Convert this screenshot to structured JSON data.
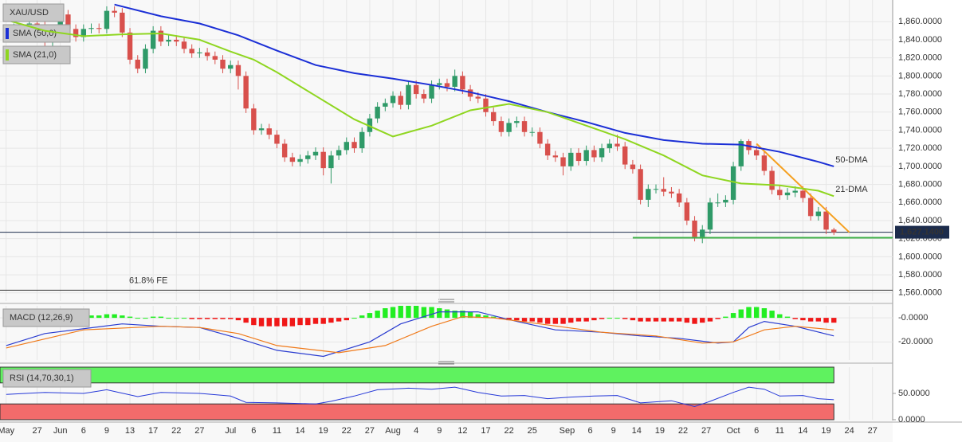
{
  "chart_data": [
    {
      "type": "candlestick",
      "title": "XAU/USD",
      "xlim": [
        -0.8,
        114.6
      ],
      "xticks": [
        {
          "value": 0,
          "label": "May"
        },
        {
          "value": 4,
          "label": "27"
        },
        {
          "value": 7,
          "label": "Jun"
        },
        {
          "value": 10,
          "label": "6"
        },
        {
          "value": 13,
          "label": "9"
        },
        {
          "value": 16,
          "label": "13"
        },
        {
          "value": 19,
          "label": "17"
        },
        {
          "value": 22,
          "label": "22"
        },
        {
          "value": 25,
          "label": "27"
        },
        {
          "value": 29,
          "label": "Jul"
        },
        {
          "value": 32,
          "label": "6"
        },
        {
          "value": 35,
          "label": "11"
        },
        {
          "value": 38,
          "label": "14"
        },
        {
          "value": 41,
          "label": "19"
        },
        {
          "value": 44,
          "label": "22"
        },
        {
          "value": 47,
          "label": "27"
        },
        {
          "value": 50,
          "label": "Aug"
        },
        {
          "value": 53,
          "label": "4"
        },
        {
          "value": 56,
          "label": "9"
        },
        {
          "value": 59,
          "label": "12"
        },
        {
          "value": 62,
          "label": "17"
        },
        {
          "value": 65,
          "label": "22"
        },
        {
          "value": 68,
          "label": "25"
        },
        {
          "value": 72.5,
          "label": "Sep"
        },
        {
          "value": 75.5,
          "label": "6"
        },
        {
          "value": 78.5,
          "label": "9"
        },
        {
          "value": 81.5,
          "label": "14"
        },
        {
          "value": 84.5,
          "label": "19"
        },
        {
          "value": 87.5,
          "label": "22"
        },
        {
          "value": 90.5,
          "label": "27"
        },
        {
          "value": 94,
          "label": "Oct"
        },
        {
          "value": 97,
          "label": "6"
        },
        {
          "value": 100,
          "label": "11"
        },
        {
          "value": 103,
          "label": "14"
        },
        {
          "value": 106,
          "label": "19"
        },
        {
          "value": 109,
          "label": "24"
        },
        {
          "value": 112,
          "label": "27"
        }
      ],
      "ylim": [
        1551,
        1884
      ],
      "yticks": [
        {
          "value": 1560,
          "label": "1,560.0000"
        },
        {
          "value": 1580,
          "label": "1,580.0000"
        },
        {
          "value": 1600,
          "label": "1,600.0000"
        },
        {
          "value": 1620,
          "label": "1,620.0000"
        },
        {
          "value": 1640,
          "label": "1,640.0000"
        },
        {
          "value": 1660,
          "label": "1,660.0000"
        },
        {
          "value": 1680,
          "label": "1,680.0000"
        },
        {
          "value": 1700,
          "label": "1,700.0000"
        },
        {
          "value": 1720,
          "label": "1,720.0000"
        },
        {
          "value": 1740,
          "label": "1,740.0000"
        },
        {
          "value": 1760,
          "label": "1,760.0000"
        },
        {
          "value": 1780,
          "label": "1,780.0000"
        },
        {
          "value": 1800,
          "label": "1,800.0000"
        },
        {
          "value": 1820,
          "label": "1,820.0000"
        },
        {
          "value": 1840,
          "label": "1,840.0000"
        },
        {
          "value": 1860,
          "label": "1,860.0000"
        }
      ],
      "grid": true,
      "up_color": "#2f9a68",
      "down_color": "#d8504c",
      "open": [
        1845,
        1850,
        1853,
        1851,
        1858,
        1855,
        1838,
        1848,
        1868,
        1852,
        1843,
        1852,
        1853,
        1852,
        1872,
        1870,
        1848,
        1818,
        1808,
        1830,
        1850,
        1838,
        1840,
        1838,
        1830,
        1825,
        1826,
        1822,
        1818,
        1808,
        1812,
        1800,
        1764,
        1740,
        1742,
        1735,
        1725,
        1710,
        1705,
        1708,
        1712,
        1716,
        1698,
        1712,
        1718,
        1727,
        1720,
        1738,
        1753,
        1766,
        1770,
        1778,
        1768,
        1790,
        1780,
        1775,
        1790,
        1792,
        1788,
        1800,
        1785,
        1777,
        1775,
        1760,
        1750,
        1738,
        1748,
        1750,
        1738,
        1738,
        1725,
        1712,
        1710,
        1700,
        1715,
        1706,
        1718,
        1710,
        1720,
        1725,
        1722,
        1702,
        1697,
        1663,
        1675,
        1675,
        1672,
        1670,
        1660,
        1640,
        1622,
        1630,
        1660,
        1660,
        1663,
        1700,
        1728,
        1718,
        1712,
        1695,
        1674,
        1668,
        1671,
        1673,
        1665,
        1645,
        1650,
        1630
      ],
      "high": [
        1855,
        1858,
        1858,
        1863,
        1863,
        1860,
        1853,
        1873,
        1873,
        1857,
        1857,
        1858,
        1858,
        1877,
        1877,
        1875,
        1853,
        1823,
        1835,
        1855,
        1855,
        1845,
        1845,
        1843,
        1835,
        1831,
        1831,
        1827,
        1823,
        1817,
        1817,
        1805,
        1769,
        1747,
        1747,
        1740,
        1730,
        1715,
        1713,
        1717,
        1721,
        1721,
        1717,
        1723,
        1732,
        1732,
        1743,
        1758,
        1771,
        1775,
        1783,
        1783,
        1795,
        1795,
        1785,
        1795,
        1797,
        1797,
        1807,
        1805,
        1790,
        1782,
        1780,
        1765,
        1755,
        1753,
        1755,
        1755,
        1743,
        1743,
        1730,
        1717,
        1715,
        1720,
        1720,
        1723,
        1723,
        1725,
        1730,
        1735,
        1727,
        1707,
        1702,
        1680,
        1680,
        1688,
        1677,
        1675,
        1665,
        1645,
        1635,
        1665,
        1670,
        1668,
        1705,
        1730,
        1730,
        1723,
        1717,
        1700,
        1679,
        1676,
        1678,
        1678,
        1670,
        1655,
        1655,
        1632
      ],
      "low": [
        1840,
        1845,
        1846,
        1846,
        1850,
        1833,
        1833,
        1843,
        1847,
        1838,
        1838,
        1847,
        1847,
        1847,
        1865,
        1843,
        1813,
        1803,
        1803,
        1825,
        1833,
        1833,
        1833,
        1825,
        1820,
        1820,
        1817,
        1813,
        1803,
        1803,
        1785,
        1759,
        1735,
        1735,
        1730,
        1720,
        1705,
        1700,
        1700,
        1703,
        1707,
        1690,
        1681,
        1707,
        1713,
        1715,
        1715,
        1733,
        1748,
        1761,
        1765,
        1763,
        1763,
        1775,
        1770,
        1770,
        1785,
        1783,
        1783,
        1780,
        1772,
        1770,
        1755,
        1745,
        1733,
        1733,
        1743,
        1733,
        1733,
        1720,
        1707,
        1705,
        1690,
        1695,
        1701,
        1701,
        1705,
        1705,
        1715,
        1717,
        1697,
        1692,
        1658,
        1655,
        1670,
        1667,
        1665,
        1655,
        1635,
        1617,
        1615,
        1625,
        1655,
        1655,
        1658,
        1695,
        1713,
        1707,
        1690,
        1669,
        1663,
        1663,
        1666,
        1660,
        1640,
        1640,
        1625,
        1624
      ],
      "close": [
        1850,
        1853,
        1851,
        1858,
        1855,
        1838,
        1848,
        1868,
        1852,
        1843,
        1852,
        1853,
        1852,
        1872,
        1870,
        1848,
        1818,
        1808,
        1830,
        1850,
        1838,
        1840,
        1838,
        1830,
        1825,
        1826,
        1822,
        1818,
        1808,
        1812,
        1800,
        1764,
        1740,
        1742,
        1735,
        1725,
        1710,
        1705,
        1708,
        1712,
        1716,
        1698,
        1712,
        1718,
        1727,
        1720,
        1738,
        1753,
        1766,
        1770,
        1778,
        1768,
        1790,
        1780,
        1775,
        1790,
        1792,
        1788,
        1800,
        1785,
        1777,
        1775,
        1760,
        1750,
        1738,
        1748,
        1750,
        1738,
        1738,
        1725,
        1712,
        1710,
        1700,
        1715,
        1706,
        1718,
        1710,
        1720,
        1725,
        1722,
        1702,
        1697,
        1663,
        1675,
        1675,
        1672,
        1670,
        1660,
        1640,
        1622,
        1630,
        1660,
        1660,
        1663,
        1700,
        1728,
        1718,
        1712,
        1695,
        1674,
        1668,
        1671,
        1673,
        1665,
        1645,
        1650,
        1630,
        1627
      ],
      "lines": [
        {
          "name": "SMA (50,0)",
          "label": "50-DMA",
          "color": "#1b2fd6",
          "label_color": "#6a4fc8",
          "x": [
            14,
            20,
            25,
            30,
            35,
            40,
            45,
            50,
            55,
            60,
            65,
            70,
            75,
            80,
            85,
            90,
            95,
            100,
            105,
            107
          ],
          "values": [
            1879,
            1866,
            1858,
            1845,
            1828,
            1812,
            1803,
            1797,
            1790,
            1782,
            1772,
            1760,
            1749,
            1737,
            1729,
            1725,
            1724,
            1716,
            1705,
            1700
          ]
        },
        {
          "name": "SMA (21,0)",
          "label": "21-DMA",
          "color": "#8fd620",
          "label_color": "#7cc41a",
          "x": [
            0,
            5,
            10,
            15,
            20,
            25,
            29,
            32,
            35,
            40,
            45,
            50,
            55,
            60,
            65,
            70,
            75,
            80,
            85,
            90,
            95,
            100,
            105,
            107
          ],
          "values": [
            1862,
            1850,
            1844,
            1846,
            1847,
            1840,
            1827,
            1818,
            1804,
            1778,
            1752,
            1733,
            1745,
            1762,
            1769,
            1760,
            1745,
            1730,
            1712,
            1690,
            1681,
            1679,
            1673,
            1667
          ]
        }
      ],
      "trendlines": [
        {
          "color": "#f5a020",
          "x": [
            97,
            109
          ],
          "values": [
            1725,
            1627
          ]
        },
        {
          "color": "#3fb048",
          "x": [
            81,
            114.6
          ],
          "values": [
            1621,
            1621
          ]
        }
      ],
      "levels": [
        {
          "label": "61.8% FE",
          "value": 1563,
          "color": "#333333"
        }
      ],
      "last_price": {
        "value": 1627.14,
        "label": "1,627.1400",
        "color": "#1c2c4c"
      }
    },
    {
      "type": "macd",
      "title": "MACD (12,26,9)",
      "ylim": [
        -35,
        10
      ],
      "yticks": [
        {
          "value": 0,
          "label": "-0.0000"
        },
        {
          "value": -20,
          "label": "-20.0000"
        }
      ],
      "histogram": {
        "up_color": "#22ee22",
        "down_color": "#f01818",
        "values": [
          -1,
          -1,
          0,
          1,
          1,
          1,
          1,
          2,
          2,
          2,
          2,
          2,
          2,
          3,
          3,
          2,
          1,
          0,
          0,
          1,
          1,
          0,
          0,
          0,
          -1,
          -1,
          -1,
          -1,
          -1,
          -1,
          -2,
          -4,
          -6,
          -7,
          -7,
          -7,
          -7,
          -7,
          -6,
          -6,
          -5,
          -5,
          -4,
          -3,
          -2,
          0,
          2,
          4,
          6,
          8,
          9,
          10,
          10,
          10,
          9,
          9,
          8,
          7,
          6,
          6,
          5,
          3,
          2,
          1,
          -1,
          -2,
          -2,
          -3,
          -3,
          -4,
          -5,
          -5,
          -5,
          -4,
          -3,
          -3,
          -2,
          -1,
          0,
          0,
          -1,
          -2,
          -3,
          -3,
          -3,
          -3,
          -3,
          -3,
          -4,
          -5,
          -4,
          -3,
          -1,
          1,
          4,
          7,
          9,
          9,
          8,
          6,
          3,
          1,
          -1,
          -2,
          -3,
          -3,
          -4,
          -4
        ]
      },
      "macd_line": {
        "color": "#2a3cd0",
        "x": [
          0,
          5,
          15,
          20,
          25,
          30,
          35,
          41,
          47,
          51,
          56,
          61,
          66,
          71,
          77,
          82,
          87,
          92,
          94,
          96,
          98,
          102,
          107
        ],
        "values": [
          -23,
          -13,
          -5,
          -7,
          -8,
          -17,
          -27,
          -32,
          -20,
          -5,
          5,
          5,
          -3,
          -10,
          -12,
          -15,
          -17,
          -21,
          -20,
          -8,
          -3,
          -7,
          -15
        ]
      },
      "signal_line": {
        "color": "#f07a1a",
        "x": [
          0,
          10,
          20,
          25,
          30,
          35,
          43,
          49,
          55,
          59,
          63,
          69,
          77,
          84,
          90,
          94,
          98,
          102,
          107
        ],
        "values": [
          -25,
          -10,
          -7,
          -8,
          -13,
          -23,
          -29,
          -23,
          -7,
          1,
          0,
          -5,
          -12,
          -15,
          -21,
          -20,
          -10,
          -7,
          -10
        ]
      }
    },
    {
      "type": "rsi",
      "title": "RSI (14,70,30,1)",
      "ylim": [
        0,
        100
      ],
      "yticks": [
        {
          "value": 50,
          "label": "50.0000"
        },
        {
          "value": 0,
          "label": "0.0000"
        }
      ],
      "overbought": 70,
      "oversold": 30,
      "overbought_color": "#5ff25f",
      "oversold_color": "#f26b6b",
      "line": {
        "color": "#2538d8",
        "x": [
          0,
          5,
          10,
          13,
          17,
          20,
          25,
          29,
          31,
          35,
          40,
          42,
          45,
          48,
          52,
          55,
          58,
          61,
          64,
          67,
          70,
          73,
          76,
          79,
          82,
          86,
          89,
          91,
          94,
          96,
          98,
          100,
          103,
          105,
          107
        ],
        "values": [
          48,
          52,
          50,
          57,
          44,
          52,
          50,
          45,
          33,
          32,
          30,
          35,
          45,
          57,
          60,
          58,
          62,
          52,
          45,
          46,
          40,
          43,
          45,
          46,
          32,
          36,
          25,
          35,
          52,
          62,
          58,
          45,
          46,
          40,
          38
        ]
      }
    }
  ]
}
